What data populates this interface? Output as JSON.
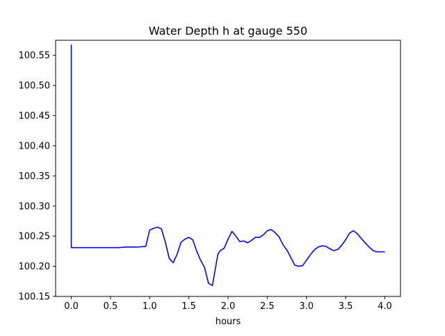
{
  "chart_data": {
    "type": "line",
    "title": "Water Depth h at gauge 550",
    "xlabel": "hours",
    "ylabel": "",
    "xlim": [
      -0.2,
      4.2
    ],
    "ylim": [
      100.15,
      100.575
    ],
    "xticks": [
      0.0,
      0.5,
      1.0,
      1.5,
      2.0,
      2.5,
      3.0,
      3.5,
      4.0
    ],
    "xtick_labels": [
      "0.0",
      "0.5",
      "1.0",
      "1.5",
      "2.0",
      "2.5",
      "3.0",
      "3.5",
      "4.0"
    ],
    "yticks": [
      100.15,
      100.2,
      100.25,
      100.3,
      100.35,
      100.4,
      100.45,
      100.5,
      100.55
    ],
    "ytick_labels": [
      "100.15",
      "100.20",
      "100.25",
      "100.30",
      "100.35",
      "100.40",
      "100.45",
      "100.50",
      "100.55"
    ],
    "grid": false,
    "series": [
      {
        "color": "#0000ff",
        "x": [
          0.0,
          0.0,
          0.0,
          0.3,
          0.6,
          0.7,
          0.85,
          0.95,
          1.0,
          1.05,
          1.1,
          1.15,
          1.2,
          1.25,
          1.3,
          1.35,
          1.4,
          1.45,
          1.5,
          1.55,
          1.6,
          1.65,
          1.7,
          1.75,
          1.8,
          1.83,
          1.87,
          1.9,
          1.95,
          2.0,
          2.05,
          2.1,
          2.15,
          2.2,
          2.25,
          2.3,
          2.35,
          2.4,
          2.45,
          2.5,
          2.55,
          2.6,
          2.65,
          2.7,
          2.75,
          2.8,
          2.85,
          2.9,
          2.95,
          3.0,
          3.05,
          3.1,
          3.15,
          3.2,
          3.25,
          3.3,
          3.35,
          3.4,
          3.45,
          3.5,
          3.55,
          3.6,
          3.65,
          3.7,
          3.75,
          3.8,
          3.85,
          3.9,
          3.95,
          4.0
        ],
        "y": [
          100.568,
          100.25,
          100.231,
          100.231,
          100.231,
          100.232,
          100.232,
          100.233,
          100.26,
          100.263,
          100.265,
          100.262,
          100.24,
          100.213,
          100.206,
          100.22,
          100.24,
          100.245,
          100.248,
          100.244,
          100.225,
          100.21,
          100.198,
          100.172,
          100.168,
          100.19,
          100.22,
          100.226,
          100.23,
          100.245,
          100.258,
          100.25,
          100.241,
          100.242,
          100.239,
          100.243,
          100.248,
          100.248,
          100.252,
          100.259,
          100.261,
          100.256,
          100.249,
          100.236,
          100.227,
          100.215,
          100.202,
          100.2,
          100.201,
          100.21,
          100.219,
          100.227,
          100.232,
          100.234,
          100.233,
          100.229,
          100.226,
          100.228,
          100.235,
          100.244,
          100.255,
          100.259,
          100.254,
          100.246,
          100.239,
          100.232,
          100.226,
          100.224,
          100.224,
          100.224
        ]
      }
    ]
  }
}
